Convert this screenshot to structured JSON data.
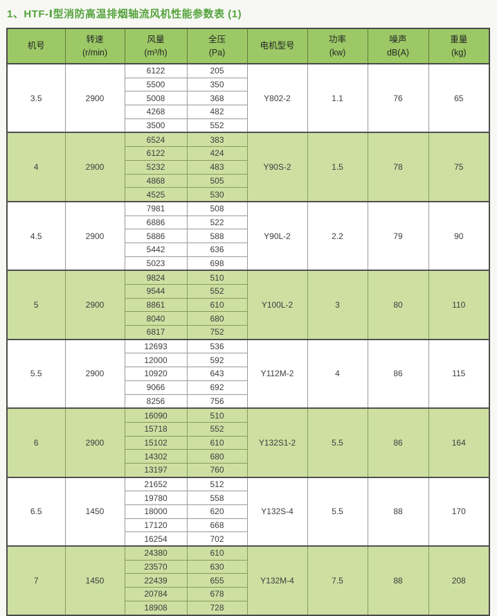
{
  "page": {
    "title": "1、HTF-Ⅰ型消防高温排烟轴流风机性能参数表 (1)"
  },
  "colors": {
    "title_green": "#55a33c",
    "header_bg": "#9cc965",
    "band_row_bg": "#cde0a2",
    "white_row_bg": "#ffffff",
    "outer_border": "#4a4a4a",
    "inner_border": "#989898",
    "band_border": "#879b58",
    "text": "#3d3d3d",
    "page_bg": "#f7f8f4"
  },
  "table": {
    "headers": [
      {
        "line1": "机号",
        "line2": ""
      },
      {
        "line1": "转速",
        "line2": "(r/min)"
      },
      {
        "line1": "风量",
        "line2": "(m³/h)"
      },
      {
        "line1": "全压",
        "line2": "(Pa)"
      },
      {
        "line1": "电机型号",
        "line2": ""
      },
      {
        "line1": "功率",
        "line2": "(kw)"
      },
      {
        "line1": "噪声",
        "line2": "dB(A)"
      },
      {
        "line1": "重量",
        "line2": "(kg)"
      }
    ],
    "groups": [
      {
        "machine_no": "3.5",
        "speed": "2900",
        "motor": "Y802-2",
        "power": "1.1",
        "noise": "76",
        "weight": "65",
        "rows": [
          [
            "6122",
            "205"
          ],
          [
            "5500",
            "350"
          ],
          [
            "5008",
            "368"
          ],
          [
            "4268",
            "482"
          ],
          [
            "3500",
            "552"
          ]
        ]
      },
      {
        "machine_no": "4",
        "speed": "2900",
        "motor": "Y90S-2",
        "power": "1.5",
        "noise": "78",
        "weight": "75",
        "rows": [
          [
            "6524",
            "383"
          ],
          [
            "6122",
            "424"
          ],
          [
            "5232",
            "483"
          ],
          [
            "4868",
            "505"
          ],
          [
            "4525",
            "530"
          ]
        ]
      },
      {
        "machine_no": "4.5",
        "speed": "2900",
        "motor": "Y90L-2",
        "power": "2.2",
        "noise": "79",
        "weight": "90",
        "rows": [
          [
            "7981",
            "508"
          ],
          [
            "6886",
            "522"
          ],
          [
            "5886",
            "588"
          ],
          [
            "5442",
            "636"
          ],
          [
            "5023",
            "698"
          ]
        ]
      },
      {
        "machine_no": "5",
        "speed": "2900",
        "motor": "Y100L-2",
        "power": "3",
        "noise": "80",
        "weight": "110",
        "rows": [
          [
            "9824",
            "510"
          ],
          [
            "9544",
            "552"
          ],
          [
            "8861",
            "610"
          ],
          [
            "8040",
            "680"
          ],
          [
            "6817",
            "752"
          ]
        ]
      },
      {
        "machine_no": "5.5",
        "speed": "2900",
        "motor": "Y112M-2",
        "power": "4",
        "noise": "86",
        "weight": "115",
        "rows": [
          [
            "12693",
            "536"
          ],
          [
            "12000",
            "592"
          ],
          [
            "10920",
            "643"
          ],
          [
            "9066",
            "692"
          ],
          [
            "8256",
            "756"
          ]
        ]
      },
      {
        "machine_no": "6",
        "speed": "2900",
        "motor": "Y132S1-2",
        "power": "5.5",
        "noise": "86",
        "weight": "164",
        "rows": [
          [
            "16090",
            "510"
          ],
          [
            "15718",
            "552"
          ],
          [
            "15102",
            "610"
          ],
          [
            "14302",
            "680"
          ],
          [
            "13197",
            "760"
          ]
        ]
      },
      {
        "machine_no": "6.5",
        "speed": "1450",
        "motor": "Y132S-4",
        "power": "5.5",
        "noise": "88",
        "weight": "170",
        "rows": [
          [
            "21652",
            "512"
          ],
          [
            "19780",
            "558"
          ],
          [
            "18000",
            "620"
          ],
          [
            "17120",
            "668"
          ],
          [
            "16254",
            "702"
          ]
        ]
      },
      {
        "machine_no": "7",
        "speed": "1450",
        "motor": "Y132M-4",
        "power": "7.5",
        "noise": "88",
        "weight": "208",
        "rows": [
          [
            "24380",
            "610"
          ],
          [
            "23570",
            "630"
          ],
          [
            "22439",
            "655"
          ],
          [
            "20784",
            "678"
          ],
          [
            "18908",
            "728"
          ]
        ]
      }
    ]
  }
}
